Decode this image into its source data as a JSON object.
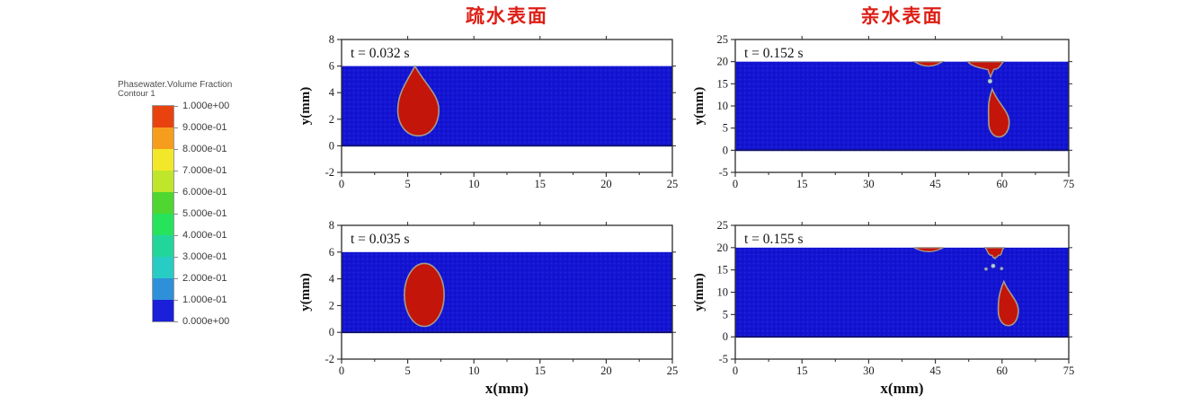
{
  "titles": {
    "left": "疏水表面",
    "right": "亲水表面"
  },
  "legend": {
    "title": "Phasewater.Volume Fraction",
    "subtitle": "Contour 1",
    "tick_labels": [
      "1.000e+00",
      "9.000e-01",
      "8.000e-01",
      "7.000e-01",
      "6.000e-01",
      "5.000e-01",
      "4.000e-01",
      "3.000e-01",
      "2.000e-01",
      "1.000e-01",
      "0.000e+00"
    ],
    "colors": [
      "#e8430f",
      "#f79d1e",
      "#f2e829",
      "#bfe62a",
      "#4fd631",
      "#27e35c",
      "#22d69b",
      "#27cdc4",
      "#2e90d9",
      "#1a1fd9"
    ]
  },
  "colors": {
    "title_red": "#dd1f16",
    "field_blue": "#1415d2",
    "field_blue_dark": "#0b0bbd",
    "field_blue_light": "#2a2ae4",
    "drop_red": "#c3150a",
    "interface_outline": "#a49b8e",
    "axis": "#2b2b2b",
    "tick_text": "#1a1a1a",
    "legend_text": "#4d4d4d",
    "band_bottom_line": "#11116e"
  },
  "chart_data": {
    "type": "contour-grid",
    "description": "Water volume fraction contours (red = water drop, blue = surrounding phase) on hydrophobic (left) vs hydrophilic (right) surfaces at four times",
    "columns": [
      {
        "title": "疏水表面"
      },
      {
        "title": "亲水表面"
      }
    ],
    "colorbar": {
      "title": "Phasewater.Volume Fraction",
      "subtitle": "Contour 1",
      "range": [
        0.0,
        1.0
      ],
      "tick_labels": [
        "1.000e+00",
        "9.000e-01",
        "8.000e-01",
        "7.000e-01",
        "6.000e-01",
        "5.000e-01",
        "4.000e-01",
        "3.000e-01",
        "2.000e-01",
        "1.000e-01",
        "0.000e+00"
      ]
    },
    "panels": [
      {
        "id": "hydrophobic-t1",
        "column": 0,
        "time_label": "t = 0.032 s",
        "xlim": [
          0,
          25
        ],
        "ylim": [
          -2,
          8
        ],
        "xticks": [
          0,
          5,
          10,
          15,
          20,
          25
        ],
        "yticks": [
          -2,
          0,
          2,
          4,
          6,
          8
        ],
        "xlabel": "",
        "ylabel": "y(mm)",
        "fluid_band": {
          "y0": 0,
          "y1": 6
        },
        "features": [
          {
            "type": "teardrop",
            "tip": [
              5.55,
              6.0
            ],
            "center": [
              5.8,
              2.7
            ],
            "rx": 1.55,
            "bottom": 0.75
          }
        ]
      },
      {
        "id": "hydrophilic-t1",
        "column": 1,
        "time_label": "t = 0.152 s",
        "xlim": [
          0,
          75
        ],
        "ylim": [
          -5,
          25
        ],
        "xticks": [
          0,
          15,
          30,
          45,
          60,
          75
        ],
        "yticks": [
          -5,
          0,
          5,
          10,
          15,
          20,
          25
        ],
        "xlabel": "",
        "ylabel": "y(mm)",
        "fluid_band": {
          "y0": 0,
          "y1": 20
        },
        "features": [
          {
            "type": "film",
            "x0": 40.3,
            "x1": 46.6,
            "sag": 1.0
          },
          {
            "type": "pendant",
            "x0": 52.3,
            "x1": 60.3,
            "neck_x": 57.4,
            "neck_y": 16.4
          },
          {
            "type": "dot",
            "center": [
              57.3,
              15.6
            ],
            "r": 0.45,
            "color": "#9fd8e8"
          },
          {
            "type": "teardrop",
            "tip": [
              57.8,
              13.8
            ],
            "center": [
              59.3,
              6.3
            ],
            "rx": 2.3,
            "bottom": 3.0
          }
        ]
      },
      {
        "id": "hydrophobic-t2",
        "column": 0,
        "time_label": "t = 0.035 s",
        "xlim": [
          0,
          25
        ],
        "ylim": [
          -2,
          8
        ],
        "xticks": [
          0,
          5,
          10,
          15,
          20,
          25
        ],
        "yticks": [
          -2,
          0,
          2,
          4,
          6,
          8
        ],
        "xlabel": "x(mm)",
        "ylabel": "y(mm)",
        "fluid_band": {
          "y0": 0,
          "y1": 6
        },
        "features": [
          {
            "type": "blob",
            "center": [
              6.25,
              2.8
            ],
            "rx": 1.5,
            "ry": 2.35
          }
        ]
      },
      {
        "id": "hydrophilic-t2",
        "column": 1,
        "time_label": "t = 0.155 s",
        "xlim": [
          0,
          75
        ],
        "ylim": [
          -5,
          25
        ],
        "xticks": [
          0,
          15,
          30,
          45,
          60,
          75
        ],
        "yticks": [
          -5,
          0,
          5,
          10,
          15,
          20,
          25
        ],
        "xlabel": "x(mm)",
        "ylabel": "y(mm)",
        "fluid_band": {
          "y0": 0,
          "y1": 20
        },
        "features": [
          {
            "type": "film",
            "x0": 40.2,
            "x1": 46.8,
            "sag": 0.9
          },
          {
            "type": "pendant",
            "x0": 56.2,
            "x1": 60.4,
            "neck_x": 58.4,
            "neck_y": 17.4
          },
          {
            "type": "dot",
            "center": [
              56.4,
              15.2
            ],
            "r": 0.3,
            "color": "#8fb4d6"
          },
          {
            "type": "dot",
            "center": [
              58.0,
              15.9
            ],
            "r": 0.42,
            "color": "#9fd8e8"
          },
          {
            "type": "dot",
            "center": [
              59.9,
              15.3
            ],
            "r": 0.3,
            "color": "#8fb4d6"
          },
          {
            "type": "teardrop",
            "tip": [
              60.4,
              12.4
            ],
            "center": [
              61.4,
              5.9
            ],
            "rx": 2.25,
            "bottom": 2.5
          }
        ]
      }
    ]
  }
}
